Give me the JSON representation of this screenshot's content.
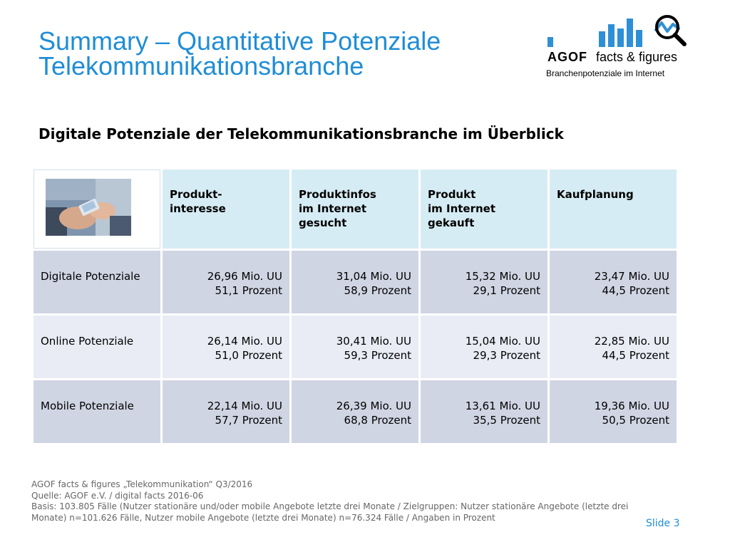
{
  "title": {
    "line1": "Summary – Quantitative Potenziale",
    "line2": "Telekommunikationsbranche"
  },
  "logo": {
    "brand": "AGOF",
    "tagline": "facts & figures",
    "subline": "Branchenpotenziale im Internet",
    "accent_color": "#2e8fd6"
  },
  "subtitle": "Digitale Potenziale der Telekommunikationsbranche im Überblick",
  "table": {
    "headers": [
      [
        "Produkt-",
        "interesse"
      ],
      [
        "Produktinfos",
        "im Internet",
        "gesucht"
      ],
      [
        "Produkt",
        "im Internet",
        "gekauft"
      ],
      [
        "Kaufplanung"
      ]
    ],
    "rows": [
      {
        "label": "Digitale Potenziale",
        "cells": [
          {
            "uu": "26,96 Mio. UU",
            "pct": "51,1 Prozent"
          },
          {
            "uu": "31,04 Mio. UU",
            "pct": "58,9 Prozent"
          },
          {
            "uu": "15,32 Mio. UU",
            "pct": "29,1 Prozent"
          },
          {
            "uu": "23,47 Mio. UU",
            "pct": "44,5 Prozent"
          }
        ]
      },
      {
        "label": "Online Potenziale",
        "cells": [
          {
            "uu": "26,14 Mio. UU",
            "pct": "51,0 Prozent"
          },
          {
            "uu": "30,41 Mio. UU",
            "pct": "59,3 Prozent"
          },
          {
            "uu": "15,04 Mio. UU",
            "pct": "29,3 Prozent"
          },
          {
            "uu": "22,85 Mio. UU",
            "pct": "44,5 Prozent"
          }
        ]
      },
      {
        "label": "Mobile Potenziale",
        "cells": [
          {
            "uu": "22,14 Mio. UU",
            "pct": "57,7 Prozent"
          },
          {
            "uu": "26,39 Mio. UU",
            "pct": "68,8 Prozent"
          },
          {
            "uu": "13,61 Mio. UU",
            "pct": "35,5 Prozent"
          },
          {
            "uu": "19,36 Mio. UU",
            "pct": "50,5 Prozent"
          }
        ]
      }
    ]
  },
  "footer": {
    "line1": "AGOF facts & figures „Telekommunikation“ Q3/2016",
    "line2": "Quelle: AGOF e.V. / digital facts 2016-06",
    "line3": "Basis: 103.805 Fälle (Nutzer stationäre und/oder mobile Angebote letzte drei Monate / Zielgruppen: Nutzer stationäre Angebote (letzte drei",
    "line4": "Monate) n=101.626 Fälle, Nutzer mobile Angebote (letzte drei Monate) n=76.324 Fälle / Angaben in Prozent"
  },
  "slide_label": "Slide 3",
  "colors": {
    "title": "#1f8dd6",
    "header_bg": "#d6ecf4",
    "row_dark": "#d0d5e3",
    "row_light": "#e9ecf4"
  }
}
